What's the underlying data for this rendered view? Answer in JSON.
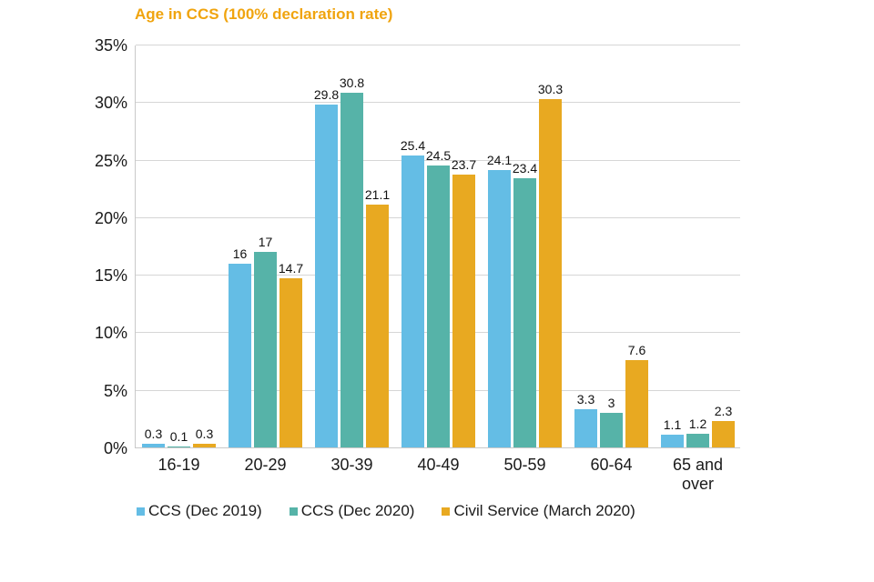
{
  "title": "Age in CCS (100% declaration rate)",
  "title_color": "#F0A40E",
  "axis_color": "#c9c9c9",
  "grid_color": "#d6d6d6",
  "chart_data": {
    "type": "bar",
    "title": "Age in CCS (100% declaration rate)",
    "categories": [
      "16-19",
      "20-29",
      "30-39",
      "40-49",
      "50-59",
      "60-64",
      "65 and over"
    ],
    "series": [
      {
        "name": "CCS (Dec 2019)",
        "color": "#64BDE5",
        "values": [
          0.3,
          16,
          29.8,
          25.4,
          24.1,
          3.3,
          1.1
        ]
      },
      {
        "name": "CCS (Dec 2020)",
        "color": "#56B3A8",
        "values": [
          0.1,
          17,
          30.8,
          24.5,
          23.4,
          3,
          1.2
        ]
      },
      {
        "name": "Civil Service (March 2020)",
        "color": "#E8A921",
        "values": [
          0.3,
          14.7,
          21.1,
          23.7,
          30.3,
          7.6,
          2.3
        ]
      }
    ],
    "xlabel": "",
    "ylabel": "",
    "ylim": [
      0,
      35
    ],
    "y_ticks": [
      "0%",
      "5%",
      "10%",
      "15%",
      "20%",
      "25%",
      "30%",
      "35%"
    ],
    "grid": true,
    "legend_position": "bottom",
    "data_labels": true
  }
}
